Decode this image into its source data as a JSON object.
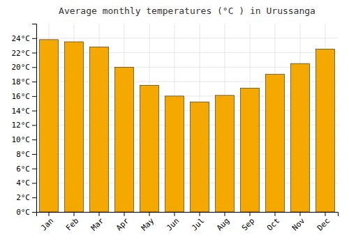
{
  "chart_data": {
    "type": "bar",
    "title": "Average monthly temperatures (°C ) in Urussanga",
    "categories": [
      "Jan",
      "Feb",
      "Mar",
      "Apr",
      "May",
      "Jun",
      "Jul",
      "Aug",
      "Sep",
      "Oct",
      "Nov",
      "Dec"
    ],
    "values": [
      23.8,
      23.5,
      22.8,
      20.0,
      17.5,
      16.0,
      15.2,
      16.1,
      17.1,
      19.0,
      20.5,
      22.5
    ],
    "color": "#F5A800",
    "ylim": [
      0,
      26
    ],
    "yticks": [
      {
        "value": 0,
        "label": "0°C"
      },
      {
        "value": 2,
        "label": "2°C"
      },
      {
        "value": 4,
        "label": "4°C"
      },
      {
        "value": 6,
        "label": "6°C"
      },
      {
        "value": 8,
        "label": "8°C"
      },
      {
        "value": 10,
        "label": "10°C"
      },
      {
        "value": 12,
        "label": "12°C"
      },
      {
        "value": 14,
        "label": "14°C"
      },
      {
        "value": 16,
        "label": "16°C"
      },
      {
        "value": 18,
        "label": "18°C"
      },
      {
        "value": 20,
        "label": "20°C"
      },
      {
        "value": 22,
        "label": "22°C"
      },
      {
        "value": 24,
        "label": "24°C"
      }
    ],
    "grid": true
  }
}
